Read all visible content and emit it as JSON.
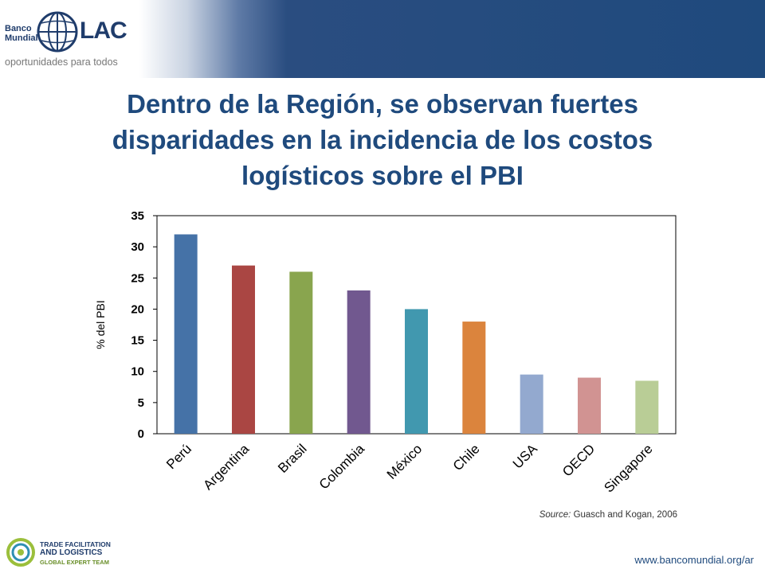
{
  "header": {
    "brand_line1": "Banco",
    "brand_line2": "Mundial",
    "brand_lac": "LAC",
    "tagline": "oportunidades para todos"
  },
  "slide": {
    "title": "Dentro de la Región, se observan fuertes disparidades en la incidencia de los costos logísticos sobre el PBI"
  },
  "chart_data": {
    "type": "bar",
    "title": "",
    "xlabel": "",
    "ylabel": "% del PBI",
    "ylim": [
      0,
      35
    ],
    "yticks": [
      "0",
      "5",
      "10",
      "15",
      "20",
      "25",
      "30",
      "35"
    ],
    "grid": false,
    "categories": [
      "Perú",
      "Argentina",
      "Brasil",
      "Colombia",
      "México",
      "Chile",
      "USA",
      "OECD",
      "Singapore"
    ],
    "values": [
      32,
      27,
      26,
      23,
      20,
      18,
      9.5,
      9,
      8.5
    ],
    "colors": [
      "#4572a7",
      "#aa4643",
      "#89a54e",
      "#71588f",
      "#4198af",
      "#db843d",
      "#93a9cf",
      "#d19392",
      "#b9cd96"
    ]
  },
  "source": {
    "label": "Source:",
    "text": "Guasch and Kogan, 2006"
  },
  "footer": {
    "logo_line1": "TRADE FACILITATION",
    "logo_line2": "AND LOGISTICS",
    "logo_line3": "GLOBAL EXPERT TEAM",
    "url": "www.bancomundial.org/ar"
  }
}
